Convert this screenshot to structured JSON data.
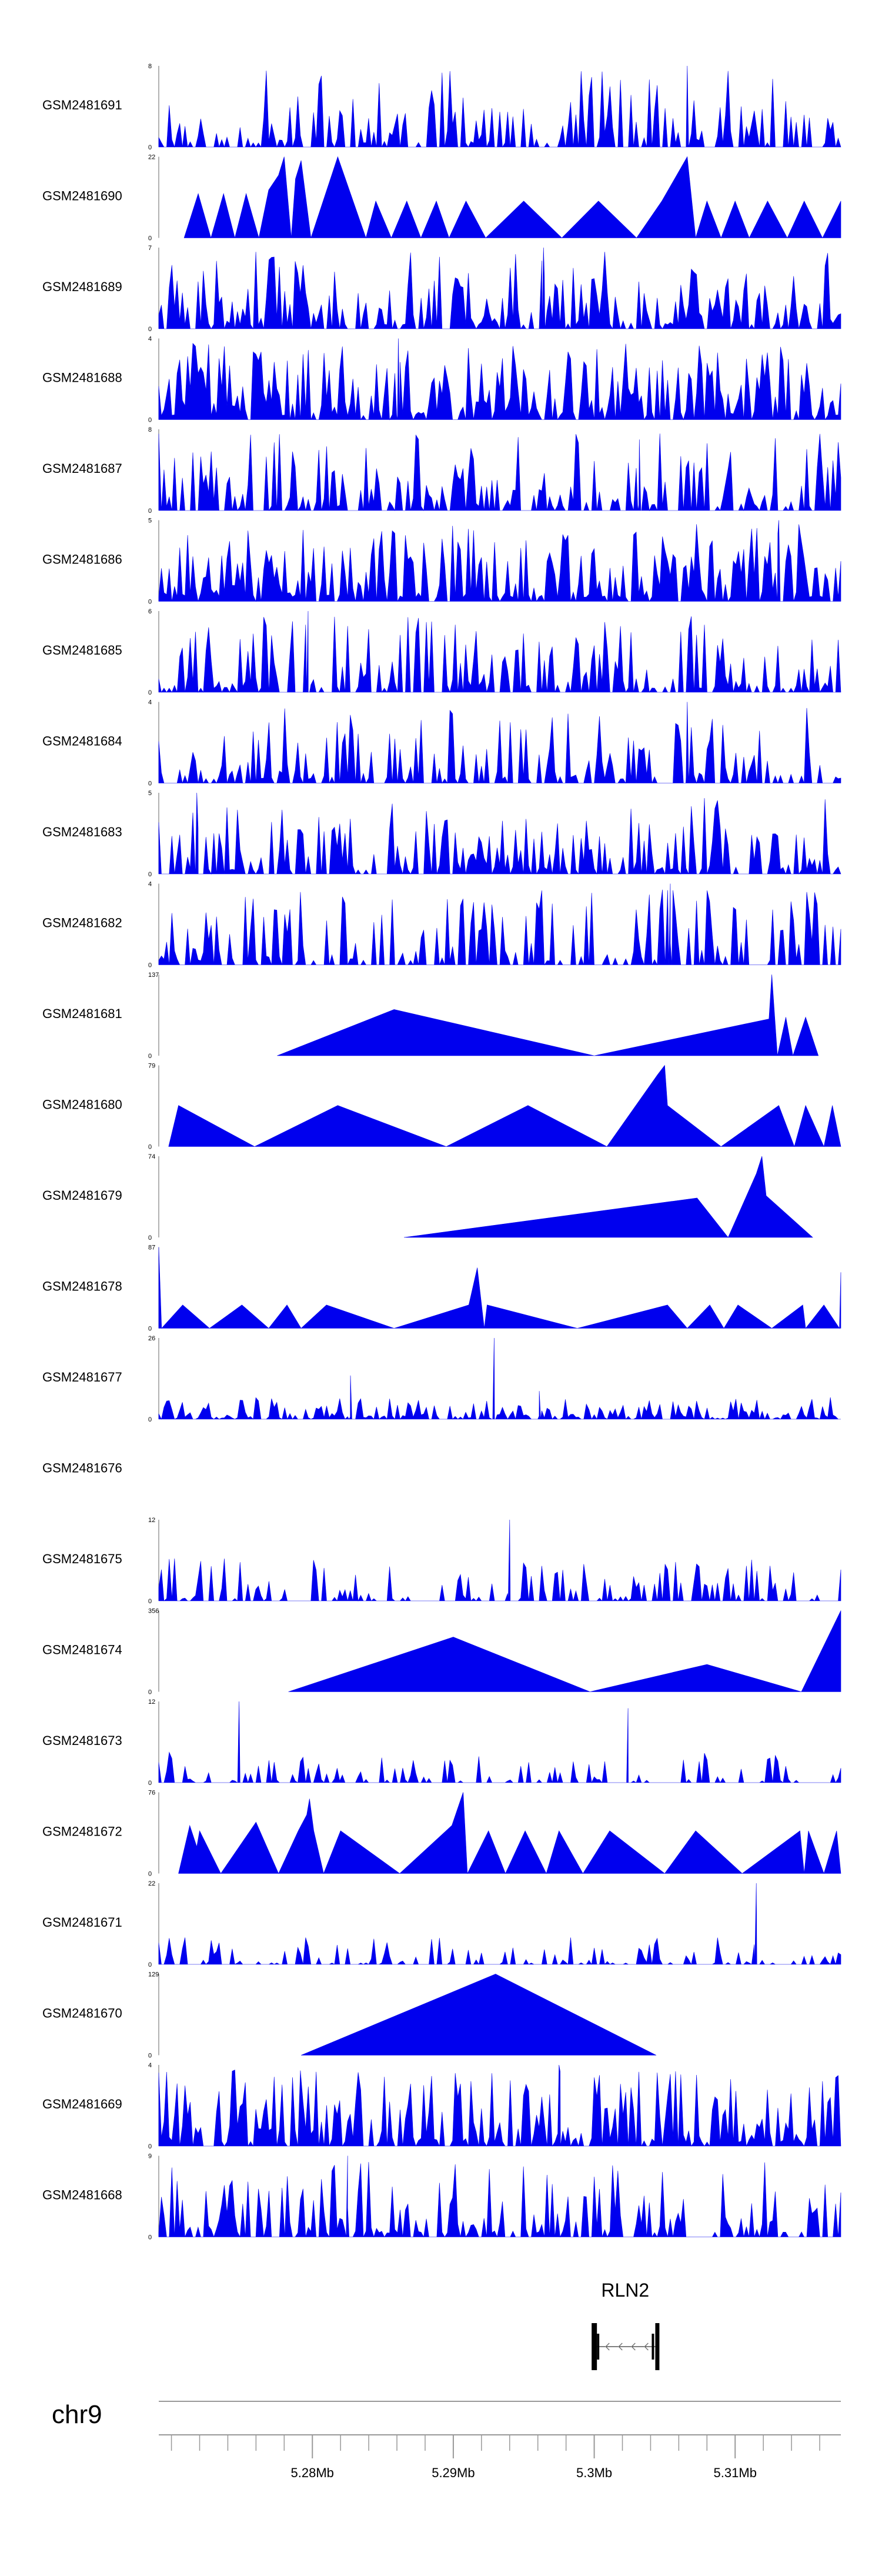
{
  "chart_data": {
    "type": "area",
    "title": "",
    "chromosome": "chr9",
    "x_range_mb": [
      5.2691,
      5.3175
    ],
    "x_ticks": [
      "5.28Mb",
      "5.29Mb",
      "5.3Mb",
      "5.31Mb"
    ],
    "x_tick_values": [
      5.28,
      5.29,
      5.3,
      5.31
    ],
    "fill_color": "#0000ee",
    "gene": {
      "name": "RLN2",
      "strand": "-",
      "start_mb": 5.2999,
      "end_mb": 5.3045
    },
    "tracks": [
      {
        "name": "GSM2481691",
        "ymin": "0",
        "ymax": "8",
        "max": 8,
        "style": "dense",
        "seed": 11,
        "density": 0.55,
        "peaks": [
          [
            5.3066,
            8
          ]
        ]
      },
      {
        "name": "GSM2481690",
        "ymin": "0",
        "ymax": "22",
        "max": 22,
        "style": "sparse",
        "points": [
          [
            5.2709,
            0
          ],
          [
            5.2719,
            12
          ],
          [
            5.2728,
            0
          ],
          [
            5.2737,
            12
          ],
          [
            5.2745,
            0
          ],
          [
            5.2753,
            12
          ],
          [
            5.2762,
            0
          ],
          [
            5.2769,
            13
          ],
          [
            5.2776,
            17
          ],
          [
            5.278,
            22
          ],
          [
            5.2785,
            0
          ],
          [
            5.2788,
            16
          ],
          [
            5.2792,
            21
          ],
          [
            5.2799,
            0
          ],
          [
            5.2818,
            22
          ],
          [
            5.2838,
            0
          ],
          [
            5.2845,
            10
          ],
          [
            5.2856,
            0
          ],
          [
            5.2867,
            10
          ],
          [
            5.2877,
            0
          ],
          [
            5.2888,
            10
          ],
          [
            5.2897,
            0
          ],
          [
            5.2909,
            10
          ],
          [
            5.2923,
            0
          ],
          [
            5.295,
            10
          ],
          [
            5.2977,
            0
          ],
          [
            5.3003,
            10
          ],
          [
            5.303,
            0
          ],
          [
            5.3048,
            10
          ],
          [
            5.306,
            18
          ],
          [
            5.3066,
            22
          ],
          [
            5.3072,
            0
          ],
          [
            5.308,
            10
          ],
          [
            5.309,
            0
          ],
          [
            5.31,
            10
          ],
          [
            5.311,
            0
          ],
          [
            5.3123,
            10
          ],
          [
            5.3137,
            0
          ],
          [
            5.3149,
            10
          ],
          [
            5.3162,
            0
          ],
          [
            5.3175,
            10
          ]
        ]
      },
      {
        "name": "GSM2481689",
        "ymin": "0",
        "ymax": "7",
        "max": 7,
        "style": "dense",
        "seed": 23,
        "density": 0.7,
        "peaks": [
          [
            5.2964,
            7
          ]
        ]
      },
      {
        "name": "GSM2481688",
        "ymin": "0",
        "ymax": "4",
        "max": 4,
        "style": "dense",
        "seed": 37,
        "density": 0.8,
        "peaks": [
          [
            5.2861,
            4
          ]
        ]
      },
      {
        "name": "GSM2481687",
        "ymin": "0",
        "ymax": "8",
        "max": 8,
        "style": "dense",
        "seed": 41,
        "density": 0.55,
        "peaks": [
          [
            5.3032,
            7
          ]
        ]
      },
      {
        "name": "GSM2481686",
        "ymin": "0",
        "ymax": "5",
        "max": 5,
        "style": "dense",
        "seed": 53,
        "density": 0.8,
        "peaks": [
          [
            5.3131,
            5
          ]
        ]
      },
      {
        "name": "GSM2481685",
        "ymin": "0",
        "ymax": "6",
        "max": 6,
        "style": "dense",
        "seed": 67,
        "density": 0.55,
        "peaks": [
          [
            5.2797,
            6
          ]
        ]
      },
      {
        "name": "GSM2481684",
        "ymin": "0",
        "ymax": "4",
        "max": 4,
        "style": "dense",
        "seed": 71,
        "density": 0.6,
        "peaks": [
          [
            5.3066,
            4
          ]
        ]
      },
      {
        "name": "GSM2481683",
        "ymin": "0",
        "ymax": "5",
        "max": 5,
        "style": "dense",
        "seed": 83,
        "density": 0.6,
        "peaks": [
          [
            5.2718,
            5
          ]
        ]
      },
      {
        "name": "GSM2481682",
        "ymin": "0",
        "ymax": "4",
        "max": 4,
        "style": "dense",
        "seed": 97,
        "density": 0.5,
        "peaks": [
          [
            5.3054,
            4
          ]
        ]
      },
      {
        "name": "GSM2481681",
        "ymin": "0",
        "ymax": "137",
        "max": 137,
        "style": "sparse",
        "points": [
          [
            5.2775,
            0
          ],
          [
            5.2858,
            78
          ],
          [
            5.3,
            0
          ],
          [
            5.3124,
            62
          ],
          [
            5.3126,
            137
          ],
          [
            5.313,
            0
          ],
          [
            5.3136,
            65
          ],
          [
            5.3141,
            0
          ],
          [
            5.315,
            65
          ],
          [
            5.3159,
            0
          ]
        ]
      },
      {
        "name": "GSM2481680",
        "ymin": "0",
        "ymax": "79",
        "max": 79,
        "style": "sparse",
        "points": [
          [
            5.2698,
            0
          ],
          [
            5.2705,
            40
          ],
          [
            5.2759,
            0
          ],
          [
            5.2818,
            40
          ],
          [
            5.2895,
            0
          ],
          [
            5.2953,
            40
          ],
          [
            5.3009,
            0
          ],
          [
            5.3045,
            70
          ],
          [
            5.305,
            79
          ],
          [
            5.3052,
            40
          ],
          [
            5.309,
            0
          ],
          [
            5.3131,
            40
          ],
          [
            5.3142,
            0
          ],
          [
            5.315,
            40
          ],
          [
            5.3163,
            0
          ],
          [
            5.3169,
            40
          ],
          [
            5.3175,
            0
          ]
        ]
      },
      {
        "name": "GSM2481679",
        "ymin": "0",
        "ymax": "74",
        "max": 74,
        "style": "sparse",
        "points": [
          [
            5.2865,
            0
          ],
          [
            5.3073,
            36
          ],
          [
            5.3095,
            0
          ],
          [
            5.3115,
            58
          ],
          [
            5.3119,
            74
          ],
          [
            5.3122,
            38
          ],
          [
            5.3155,
            0
          ]
        ]
      },
      {
        "name": "GSM2481678",
        "ymin": "0",
        "ymax": "87",
        "max": 87,
        "style": "sparse",
        "points": [
          [
            5.2691,
            87
          ],
          [
            5.2693,
            0
          ],
          [
            5.2708,
            25
          ],
          [
            5.2727,
            0
          ],
          [
            5.275,
            25
          ],
          [
            5.2769,
            0
          ],
          [
            5.2782,
            25
          ],
          [
            5.2792,
            0
          ],
          [
            5.281,
            25
          ],
          [
            5.2858,
            0
          ],
          [
            5.2911,
            25
          ],
          [
            5.2917,
            65
          ],
          [
            5.2922,
            0
          ],
          [
            5.2924,
            25
          ],
          [
            5.2988,
            0
          ],
          [
            5.3052,
            25
          ],
          [
            5.3066,
            0
          ],
          [
            5.3082,
            25
          ],
          [
            5.3092,
            0
          ],
          [
            5.3102,
            25
          ],
          [
            5.3126,
            0
          ],
          [
            5.3148,
            25
          ],
          [
            5.315,
            0
          ],
          [
            5.3163,
            25
          ],
          [
            5.3174,
            0
          ],
          [
            5.3175,
            60
          ]
        ]
      },
      {
        "name": "GSM2481677",
        "ymin": "0",
        "ymax": "26",
        "max": 26,
        "style": "dense",
        "seed": 101,
        "density": 0.7,
        "scale": 0.3,
        "peaks": [
          [
            5.2827,
            14
          ],
          [
            5.2929,
            26
          ],
          [
            5.2961,
            9
          ]
        ]
      },
      {
        "name": "GSM2481676",
        "ymin": "",
        "ymax": "",
        "max": 1,
        "style": "empty"
      },
      {
        "name": "GSM2481675",
        "ymin": "0",
        "ymax": "12",
        "max": 12,
        "style": "dense",
        "seed": 113,
        "density": 0.4,
        "scale": 0.55,
        "peaks": [
          [
            5.294,
            12
          ]
        ]
      },
      {
        "name": "GSM2481674",
        "ymin": "0",
        "ymax": "356",
        "max": 356,
        "style": "sparse",
        "points": [
          [
            5.2783,
            0
          ],
          [
            5.29,
            240
          ],
          [
            5.2997,
            0
          ],
          [
            5.308,
            120
          ],
          [
            5.3147,
            0
          ],
          [
            5.3175,
            356
          ]
        ]
      },
      {
        "name": "GSM2481673",
        "ymin": "0",
        "ymax": "12",
        "max": 12,
        "style": "dense",
        "seed": 127,
        "density": 0.35,
        "scale": 0.4,
        "peaks": [
          [
            5.2748,
            12
          ],
          [
            5.3024,
            11
          ]
        ]
      },
      {
        "name": "GSM2481672",
        "ymin": "0",
        "ymax": "76",
        "max": 76,
        "style": "sparse",
        "points": [
          [
            5.2705,
            0
          ],
          [
            5.2713,
            45
          ],
          [
            5.2718,
            25
          ],
          [
            5.272,
            40
          ],
          [
            5.2735,
            0
          ],
          [
            5.276,
            48
          ],
          [
            5.2776,
            0
          ],
          [
            5.279,
            40
          ],
          [
            5.2796,
            55
          ],
          [
            5.2798,
            70
          ],
          [
            5.2801,
            40
          ],
          [
            5.2808,
            0
          ],
          [
            5.282,
            40
          ],
          [
            5.2862,
            0
          ],
          [
            5.2899,
            45
          ],
          [
            5.2907,
            76
          ],
          [
            5.291,
            0
          ],
          [
            5.2925,
            40
          ],
          [
            5.2937,
            0
          ],
          [
            5.2951,
            40
          ],
          [
            5.2966,
            0
          ],
          [
            5.2975,
            40
          ],
          [
            5.2992,
            0
          ],
          [
            5.3011,
            40
          ],
          [
            5.305,
            0
          ],
          [
            5.3072,
            40
          ],
          [
            5.3105,
            0
          ],
          [
            5.3146,
            40
          ],
          [
            5.3149,
            0
          ],
          [
            5.3152,
            40
          ],
          [
            5.3163,
            0
          ],
          [
            5.3172,
            40
          ],
          [
            5.3175,
            0
          ]
        ]
      },
      {
        "name": "GSM2481671",
        "ymin": "0",
        "ymax": "22",
        "max": 22,
        "style": "dense",
        "seed": 139,
        "density": 0.35,
        "scale": 0.35,
        "peaks": [
          [
            5.3115,
            22
          ]
        ]
      },
      {
        "name": "GSM2481670",
        "ymin": "0",
        "ymax": "129",
        "max": 129,
        "style": "sparse",
        "points": [
          [
            5.2792,
            0
          ],
          [
            5.293,
            129
          ],
          [
            5.3044,
            0
          ]
        ]
      },
      {
        "name": "GSM2481669",
        "ymin": "0",
        "ymax": "4",
        "max": 4,
        "style": "dense",
        "seed": 151,
        "density": 0.75,
        "peaks": [
          [
            5.2975,
            4
          ]
        ]
      },
      {
        "name": "GSM2481668",
        "ymin": "0",
        "ymax": "9",
        "max": 9,
        "style": "dense",
        "seed": 163,
        "density": 0.6,
        "peaks": [
          [
            5.2825,
            9
          ]
        ]
      }
    ]
  }
}
